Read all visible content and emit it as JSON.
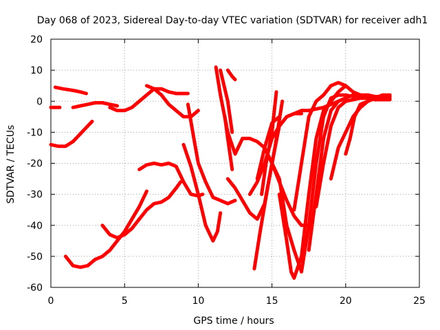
{
  "chart_data": {
    "type": "scatter",
    "title": "Day 068 of 2023, Sidereal Day-to-day VTEC variation (SDTVAR) for receiver adh1",
    "xlabel": "GPS time / hours",
    "ylabel": "SDTVAR / TECUs",
    "xlim": [
      0,
      25
    ],
    "ylim": [
      -60,
      20
    ],
    "xticks": [
      0,
      5,
      10,
      15,
      20,
      25
    ],
    "yticks": [
      -60,
      -50,
      -40,
      -30,
      -20,
      -10,
      0,
      10,
      20
    ],
    "grid": true,
    "marker": "plus",
    "color": "#ff0000",
    "series": [
      {
        "x": [
          0.0,
          0.3,
          0.6
        ],
        "y": [
          -2,
          -2,
          -2
        ]
      },
      {
        "x": [
          0.0,
          0.5,
          1.0,
          1.5,
          2.0,
          2.5,
          2.8
        ],
        "y": [
          -14,
          -14.5,
          -14.5,
          -13,
          -10.5,
          -8,
          -6.5
        ]
      },
      {
        "x": [
          0.3,
          0.8,
          1.5,
          2.0,
          2.4
        ],
        "y": [
          4.5,
          4,
          3.5,
          3,
          2.5
        ]
      },
      {
        "x": [
          1.0,
          1.5,
          2.0,
          2.5,
          3.0,
          3.5,
          4.0,
          4.5,
          5.0,
          5.5,
          6.0,
          6.5
        ],
        "y": [
          -50,
          -53,
          -53.5,
          -53,
          -51,
          -50,
          -48,
          -45,
          -42,
          -38,
          -34,
          -29
        ]
      },
      {
        "x": [
          1.5,
          2.0,
          2.5,
          3.0,
          3.5,
          4.0,
          4.5
        ],
        "y": [
          -2,
          -1.5,
          -1,
          -0.5,
          -0.5,
          -1,
          -1.5
        ]
      },
      {
        "x": [
          3.5,
          4.0,
          4.5,
          5.0,
          5.5,
          6.0,
          6.5,
          7.0,
          7.5,
          8.0,
          8.5,
          8.8
        ],
        "y": [
          -40,
          -43,
          -44,
          -43,
          -41,
          -38,
          -35,
          -33,
          -32.5,
          -31,
          -28,
          -26
        ]
      },
      {
        "x": [
          4.0,
          4.5,
          5.0,
          5.5,
          6.0,
          6.5,
          7.0,
          7.5,
          8.0,
          8.5,
          9.0,
          9.3
        ],
        "y": [
          -2,
          -3,
          -3,
          -2,
          0,
          2,
          4,
          4,
          3,
          2.5,
          2.5,
          2.5
        ]
      },
      {
        "x": [
          6.0,
          6.5,
          7.0,
          7.5,
          8.0,
          8.5,
          9.0,
          9.5,
          10.0,
          10.3
        ],
        "y": [
          -22,
          -20.5,
          -20,
          -20.5,
          -20,
          -21,
          -26,
          -30,
          -30.5,
          -30
        ]
      },
      {
        "x": [
          6.5,
          7.0,
          7.5,
          8.0,
          8.5,
          9.0,
          9.5,
          10.0
        ],
        "y": [
          5,
          4,
          2,
          -1,
          -3,
          -5,
          -5,
          -3
        ]
      },
      {
        "x": [
          9.0,
          9.5,
          10.0,
          10.5,
          11.0,
          11.3,
          11.5
        ],
        "y": [
          -14,
          -21,
          -30,
          -40,
          -45,
          -42,
          -36
        ]
      },
      {
        "x": [
          9.3,
          9.7,
          10.0,
          10.5,
          11.0,
          11.5,
          12.0,
          12.5
        ],
        "y": [
          -1,
          -12,
          -20,
          -26,
          -31,
          -32,
          -33,
          -32
        ]
      },
      {
        "x": [
          11.2,
          11.5,
          12.0,
          12.5,
          13.0,
          13.5,
          14.0,
          14.5,
          15.0,
          15.5,
          16.0,
          16.5,
          17.0,
          17.5
        ],
        "y": [
          11,
          2,
          -10,
          -17,
          -12,
          -12,
          -13,
          -15,
          -20,
          -26,
          -32,
          -37,
          -40,
          -40
        ]
      },
      {
        "x": [
          11.5,
          12.0,
          12.3
        ],
        "y": [
          10,
          0,
          -10
        ]
      },
      {
        "x": [
          11.8,
          12.0,
          12.3
        ],
        "y": [
          -5,
          -12,
          -22
        ]
      },
      {
        "x": [
          12.0,
          12.3,
          12.5
        ],
        "y": [
          10,
          8,
          7
        ]
      },
      {
        "x": [
          12.0,
          12.5,
          13.0,
          13.5,
          14.0,
          14.5,
          15.0,
          15.5,
          16.0,
          16.5,
          17.0
        ],
        "y": [
          -25,
          -28,
          -32,
          -36,
          -38,
          -33,
          -20,
          -8,
          -5,
          -4,
          -4
        ]
      },
      {
        "x": [
          13.5,
          14.0,
          14.5,
          15.0,
          15.5,
          16.0,
          16.5,
          17.0,
          17.5,
          18.0,
          18.5,
          19.0,
          19.5,
          20.0
        ],
        "y": [
          -30,
          -26,
          -20,
          -12,
          -8,
          -5,
          -4,
          -3,
          -3,
          -2.5,
          -2,
          -1,
          0,
          1
        ]
      },
      {
        "x": [
          13.8,
          14.2,
          14.7,
          15.2,
          15.7
        ],
        "y": [
          -54,
          -42,
          -28,
          -15,
          0
        ]
      },
      {
        "x": [
          14.0,
          14.5,
          15.0,
          15.5
        ],
        "y": [
          -25,
          -15,
          -7,
          -5
        ]
      },
      {
        "x": [
          14.3,
          14.6,
          15.0,
          15.3
        ],
        "y": [
          -30,
          -20,
          -10,
          3
        ]
      },
      {
        "x": [
          15.0,
          15.5,
          16.0,
          16.5,
          17.0,
          17.5,
          18.0,
          18.5,
          19.0,
          19.5,
          20.0,
          20.5,
          21.0,
          21.5,
          22.0,
          22.5,
          23.0
        ],
        "y": [
          -20,
          -25,
          -40,
          -48,
          -55,
          -40,
          -20,
          -5,
          1,
          2,
          2,
          1.5,
          1,
          1,
          0.5,
          0.5,
          0.5
        ]
      },
      {
        "x": [
          15.5,
          16.0,
          16.3,
          16.5,
          17.0,
          17.5,
          18.0,
          18.5,
          19.0,
          19.5,
          20.0
        ],
        "y": [
          -30,
          -45,
          -55,
          -57,
          -50,
          -30,
          -12,
          -3,
          0,
          3,
          5
        ]
      },
      {
        "x": [
          16.5,
          17.0,
          17.5,
          18.0,
          18.5,
          19.0,
          19.5,
          20.0,
          20.5,
          21.0
        ],
        "y": [
          -35,
          -20,
          -5,
          0,
          2,
          5,
          6,
          5,
          3,
          2
        ]
      },
      {
        "x": [
          17.5,
          18.0,
          18.5,
          19.0,
          19.5,
          20.0,
          20.5,
          21.0,
          21.5,
          22.0,
          22.5,
          23.0
        ],
        "y": [
          -48,
          -30,
          -12,
          -3,
          0,
          1,
          2,
          2,
          2,
          1.5,
          1.5,
          1.5
        ]
      },
      {
        "x": [
          18.0,
          18.5,
          19.0,
          19.5,
          20.0,
          20.5,
          21.0,
          21.5,
          22.0,
          22.5,
          23.0
        ],
        "y": [
          -34,
          -20,
          -8,
          -2,
          0,
          0.5,
          1,
          1,
          1,
          1,
          1
        ]
      },
      {
        "x": [
          19.0,
          19.5,
          20.0,
          20.5,
          21.0,
          21.5,
          22.0,
          22.5,
          23.0
        ],
        "y": [
          -25,
          -15,
          -10,
          -5,
          -2,
          0,
          1,
          1,
          1
        ]
      },
      {
        "x": [
          20.0,
          20.3,
          20.6,
          21.0,
          21.5,
          22.0,
          22.5,
          23.0
        ],
        "y": [
          -17,
          -12,
          -5,
          -1,
          0,
          1,
          2,
          2
        ]
      }
    ]
  }
}
